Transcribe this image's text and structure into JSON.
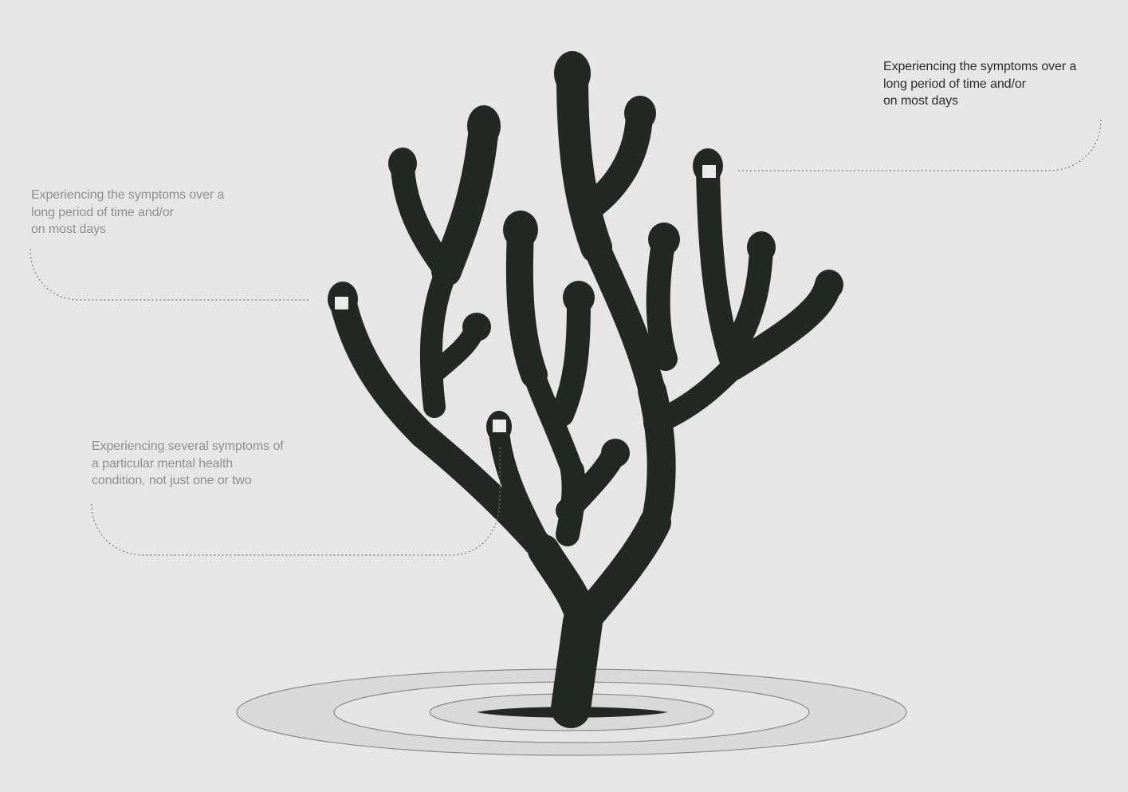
{
  "colors": {
    "background": "#e6e6e6",
    "tree": "#242825",
    "marker": "#ebebeb",
    "ripple_fill": "#d9d9d9",
    "ripple_stroke": "#8a8a8a",
    "leader_line": "#7a7a7a",
    "label_muted": "#8e8e8e",
    "label_dark": "#2a2a2a"
  },
  "annotations": [
    {
      "id": "top-right",
      "emphasis": "dark",
      "lines": [
        "Experiencing the symptoms over a",
        "long period of time and/or",
        "on most days"
      ]
    },
    {
      "id": "left-upper",
      "emphasis": "muted",
      "lines": [
        "Experiencing the symptoms over a",
        "long period of time and/or",
        "on most days"
      ]
    },
    {
      "id": "left-lower",
      "emphasis": "muted",
      "lines": [
        "Experiencing several symptoms of",
        "a particular mental health",
        "condition, not just one or two"
      ]
    }
  ],
  "icons": {
    "tree": "branching-tree-icon",
    "ripples": "ground-ripple-icon",
    "marker": "square-marker-icon"
  }
}
